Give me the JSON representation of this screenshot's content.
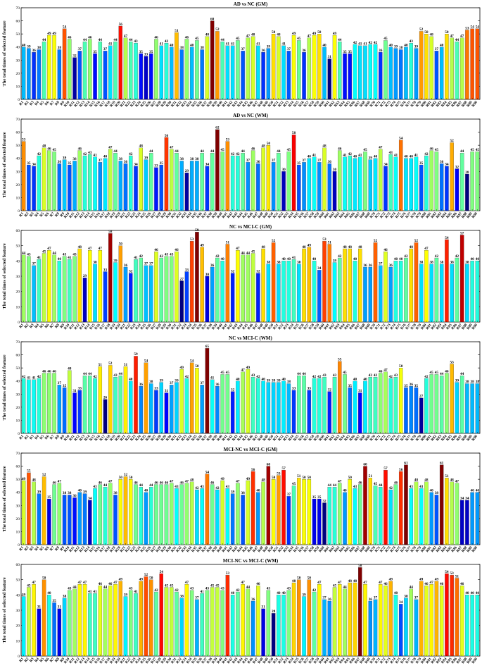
{
  "figure": {
    "ylabel": "The total times of selected feature",
    "region_prefix": "R"
  },
  "chart_data": [
    {
      "type": "bar",
      "title": "AD vs NC (GM)",
      "ylabel": "The total times of selected feature",
      "ylim": [
        0,
        70
      ],
      "yticks": [
        0,
        10,
        20,
        30,
        40,
        50,
        60,
        70
      ],
      "categories_count": 90,
      "values": [
        40,
        39,
        36,
        38,
        44,
        49,
        49,
        38,
        54,
        46,
        32,
        37,
        44,
        46,
        35,
        44,
        37,
        41,
        44,
        56,
        47,
        44,
        43,
        35,
        33,
        35,
        46,
        41,
        43,
        40,
        51,
        38,
        46,
        40,
        45,
        38,
        48,
        60,
        52,
        44,
        41,
        41,
        45,
        37,
        47,
        48,
        41,
        36,
        39,
        50,
        48,
        41,
        37,
        49,
        45,
        36,
        47,
        49,
        50,
        40,
        31,
        49,
        44,
        35,
        35,
        42,
        41,
        41,
        42,
        42,
        36,
        45,
        40,
        39,
        38,
        40,
        43,
        39,
        52,
        50,
        48,
        37,
        40,
        50,
        47,
        44,
        47,
        53,
        54,
        54
      ]
    },
    {
      "type": "bar",
      "title": "AD vs NC (WM)",
      "ylabel": "The total times of selected feature",
      "ylim": [
        0,
        70
      ],
      "yticks": [
        0,
        10,
        20,
        30,
        40,
        50,
        60,
        70
      ],
      "categories_count": 90,
      "values": [
        53,
        35,
        34,
        42,
        48,
        46,
        45,
        36,
        39,
        35,
        38,
        46,
        42,
        43,
        41,
        37,
        40,
        47,
        44,
        38,
        36,
        42,
        34,
        48,
        39,
        44,
        33,
        35,
        56,
        47,
        44,
        38,
        29,
        38,
        38,
        44,
        34,
        44,
        62,
        45,
        53,
        42,
        42,
        44,
        37,
        46,
        36,
        48,
        50,
        37,
        44,
        30,
        45,
        58,
        35,
        37,
        40,
        41,
        37,
        48,
        36,
        30,
        46,
        41,
        42,
        40,
        41,
        45,
        39,
        40,
        47,
        34,
        43,
        41,
        54,
        40,
        40,
        41,
        35,
        42,
        46,
        45,
        36,
        34,
        52,
        32,
        44,
        28,
        45,
        45
      ]
    },
    {
      "type": "bar",
      "title": "NC vs MCI-C (GM)",
      "ylabel": "The total times of selected feature",
      "ylim": [
        0,
        60
      ],
      "yticks": [
        0,
        10,
        20,
        30,
        40,
        50,
        60
      ],
      "categories_count": 90,
      "values": [
        44,
        43,
        37,
        41,
        45,
        47,
        44,
        40,
        43,
        41,
        43,
        48,
        29,
        47,
        38,
        47,
        33,
        58,
        39,
        50,
        36,
        32,
        41,
        42,
        37,
        37,
        46,
        42,
        43,
        43,
        46,
        27,
        33,
        53,
        59,
        49,
        30,
        36,
        42,
        40,
        51,
        32,
        47,
        44,
        44,
        45,
        32,
        48,
        38,
        52,
        38,
        40,
        40,
        41,
        38,
        48,
        49,
        40,
        34,
        53,
        51,
        39,
        42,
        48,
        48,
        40,
        48,
        36,
        36,
        52,
        37,
        46,
        36,
        40,
        40,
        42,
        48,
        52,
        38,
        47,
        38,
        42,
        38,
        54,
        38,
        42,
        57,
        38,
        40,
        40
      ]
    },
    {
      "type": "bar",
      "title": "NC vs MCI-C (WM)",
      "ylabel": "The total times of selected feature",
      "ylim": [
        0,
        70
      ],
      "yticks": [
        0,
        10,
        20,
        30,
        40,
        50,
        60,
        70
      ],
      "categories_count": 90,
      "values": [
        42,
        41,
        41,
        42,
        46,
        46,
        46,
        37,
        35,
        48,
        31,
        33,
        44,
        44,
        42,
        51,
        26,
        52,
        43,
        44,
        51,
        40,
        59,
        36,
        54,
        38,
        33,
        39,
        31,
        37,
        39,
        49,
        42,
        54,
        50,
        37,
        65,
        41,
        36,
        45,
        45,
        32,
        40,
        47,
        49,
        43,
        42,
        40,
        39,
        39,
        39,
        40,
        38,
        33,
        44,
        44,
        33,
        42,
        42,
        43,
        32,
        43,
        55,
        45,
        35,
        40,
        31,
        40,
        43,
        43,
        46,
        47,
        42,
        43,
        50,
        35,
        36,
        35,
        27,
        42,
        45,
        45,
        44,
        46,
        53,
        39,
        44,
        38,
        38,
        38
      ]
    },
    {
      "type": "bar",
      "title": "MCI-NC vs MCI-C (GM)",
      "ylabel": "The total times of selected feature",
      "ylim": [
        0,
        70
      ],
      "yticks": [
        0,
        10,
        20,
        30,
        40,
        50,
        60,
        70
      ],
      "categories_count": 90,
      "values": [
        49,
        55,
        48,
        39,
        52,
        35,
        46,
        47,
        38,
        38,
        36,
        40,
        39,
        34,
        43,
        46,
        44,
        47,
        38,
        50,
        52,
        50,
        46,
        44,
        40,
        44,
        46,
        46,
        46,
        47,
        43,
        46,
        47,
        48,
        42,
        43,
        54,
        46,
        42,
        49,
        43,
        39,
        47,
        38,
        49,
        56,
        40,
        48,
        60,
        50,
        53,
        57,
        37,
        45,
        51,
        50,
        50,
        35,
        35,
        32,
        44,
        44,
        47,
        40,
        50,
        43,
        46,
        60,
        51,
        45,
        44,
        57,
        42,
        46,
        56,
        61,
        43,
        48,
        43,
        48,
        40,
        38,
        61,
        51,
        48,
        47,
        34,
        34,
        40,
        40
      ]
    },
    {
      "type": "bar",
      "title": "MCI-NC vs MCI-C (WM)",
      "ylabel": "The total times of selected feature",
      "ylim": [
        0,
        60
      ],
      "yticks": [
        0,
        10,
        20,
        30,
        40,
        50,
        60
      ],
      "categories_count": 90,
      "values": [
        39,
        45,
        47,
        31,
        50,
        40,
        35,
        31,
        38,
        43,
        44,
        47,
        47,
        41,
        41,
        46,
        44,
        46,
        47,
        49,
        39,
        43,
        41,
        49,
        52,
        50,
        42,
        54,
        45,
        45,
        42,
        38,
        47,
        43,
        37,
        41,
        43,
        45,
        45,
        43,
        53,
        40,
        42,
        47,
        44,
        36,
        46,
        31,
        43,
        28,
        40,
        40,
        43,
        48,
        50,
        39,
        50,
        42,
        47,
        37,
        36,
        45,
        47,
        44,
        48,
        48,
        58,
        47,
        36,
        37,
        47,
        46,
        49,
        40,
        34,
        38,
        44,
        37,
        49,
        46,
        47,
        49,
        46,
        54,
        53,
        51,
        46,
        40,
        40,
        40
      ]
    }
  ]
}
